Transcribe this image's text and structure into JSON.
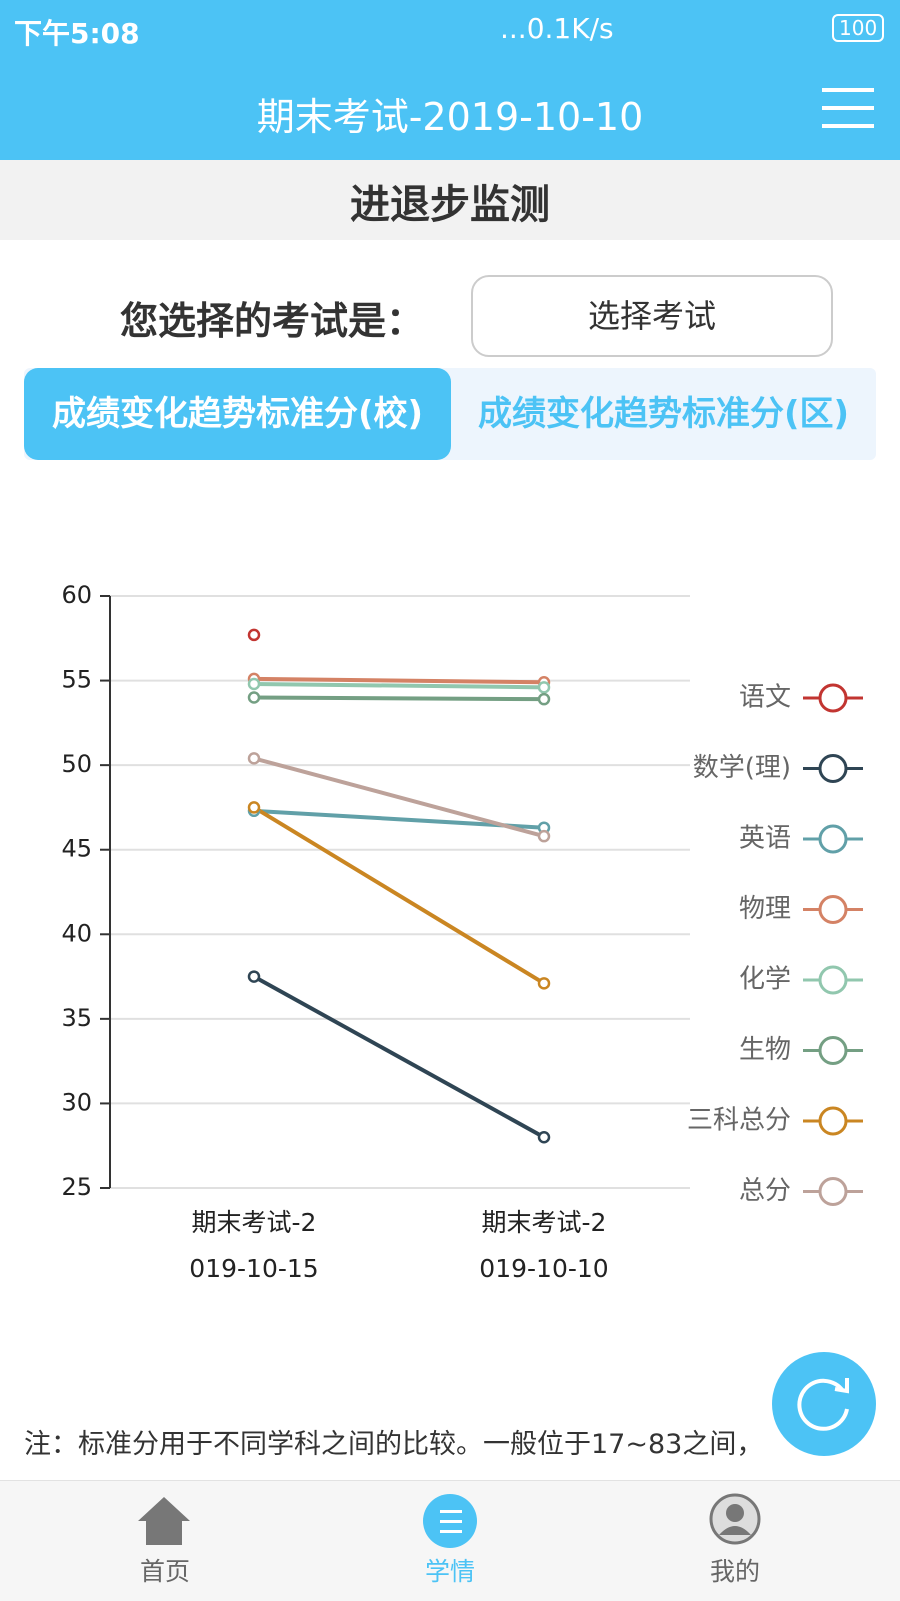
{
  "status_bar": {
    "time": "下午5:08",
    "speed": "...0.1K/s",
    "battery": "100"
  },
  "header": {
    "title": "期末考试-2019-10-10"
  },
  "section_title": "进退步监测",
  "exam_select": {
    "label": "您选择的考试是：",
    "button": "选择考试"
  },
  "tabs": [
    "成绩变化趋势标准分(校)",
    "成绩变化趋势标准分(区)"
  ],
  "chart_data": {
    "type": "line",
    "categories": [
      "期末考试-2019-10-15",
      "期末考试-2019-10-10"
    ],
    "ylim": [
      25,
      60
    ],
    "yticks": [
      25,
      30,
      35,
      40,
      45,
      50,
      55,
      60
    ],
    "grid": true,
    "legend": "right",
    "series": [
      {
        "name": "语文",
        "color": "#c23531",
        "values": [
          57.7,
          null
        ]
      },
      {
        "name": "数学(理)",
        "color": "#2f4554",
        "values": [
          37.5,
          28.0
        ]
      },
      {
        "name": "英语",
        "color": "#61a0a8",
        "values": [
          47.3,
          46.3
        ]
      },
      {
        "name": "物理",
        "color": "#d48265",
        "values": [
          55.1,
          54.9
        ]
      },
      {
        "name": "化学",
        "color": "#91c7ae",
        "values": [
          54.8,
          54.6
        ]
      },
      {
        "name": "生物",
        "color": "#749f83",
        "values": [
          54.0,
          53.9
        ]
      },
      {
        "name": "三科总分",
        "color": "#ca8622",
        "values": [
          47.5,
          37.1
        ]
      },
      {
        "name": "总分",
        "color": "#bda29a",
        "values": [
          50.4,
          45.8
        ]
      }
    ]
  },
  "note": "注：标准分用于不同学科之间的比较。一般位于17~83之间，",
  "nav": [
    "首页",
    "学情",
    "我的"
  ]
}
